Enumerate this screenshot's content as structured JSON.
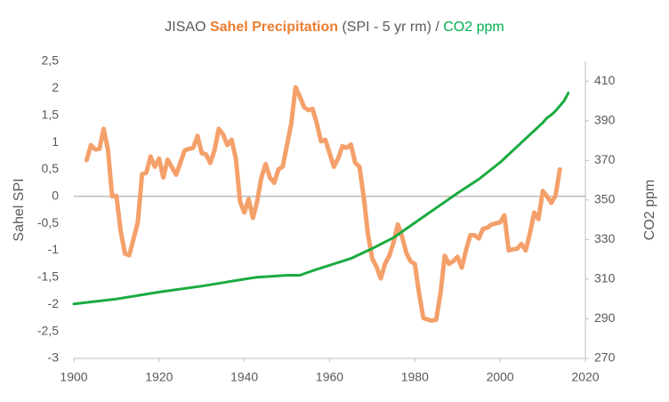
{
  "chart_data": {
    "type": "line",
    "title_parts": [
      {
        "text": "JISAO",
        "color": "#595959",
        "bold": false
      },
      {
        "text": "Sahel Precipitation",
        "color": "#ed7d31",
        "bold": true
      },
      {
        "text": "(SPI - 5 yr rm) /",
        "color": "#595959",
        "bold": false
      },
      {
        "text": "CO2 ppm",
        "color": "#00b050",
        "bold": false
      }
    ],
    "y_label": "Sahel SPI",
    "y2_label": "CO2 ppm",
    "xlim": [
      1900,
      2020
    ],
    "xticks": [
      1900,
      1920,
      1940,
      1960,
      1980,
      2000,
      2020
    ],
    "ylim": [
      -3,
      2.5
    ],
    "yticks": [
      {
        "value": 2.5,
        "label": "2,5"
      },
      2,
      {
        "value": 1.5,
        "label": "1,5"
      },
      1,
      {
        "value": 0.5,
        "label": "0,5"
      },
      0,
      {
        "value": -0.5,
        "label": "-0,5"
      },
      -1,
      {
        "value": -1.5,
        "label": "-1,5"
      },
      -2,
      {
        "value": -2.5,
        "label": "-2,5"
      },
      -3
    ],
    "y2lim": [
      270,
      420
    ],
    "y2ticks": [
      270,
      290,
      310,
      330,
      350,
      370,
      390,
      410
    ],
    "zero_line": true,
    "series": [
      {
        "color": "#f4a06a",
        "axis": "y",
        "x": [
          1903,
          1904,
          1905,
          1906,
          1907,
          1908,
          1909,
          1910,
          1911,
          1912,
          1913,
          1915,
          1916,
          1917,
          1918,
          1919,
          1920,
          1921,
          1922,
          1924,
          1926,
          1927,
          1928,
          1929,
          1930,
          1931,
          1932,
          1933,
          1934,
          1935,
          1936,
          1937,
          1938,
          1939,
          1940,
          1941,
          1942,
          1943,
          1944,
          1945,
          1946,
          1947,
          1948,
          1949,
          1950,
          1951,
          1952,
          1953,
          1954,
          1955,
          1956,
          1957,
          1958,
          1959,
          1960,
          1961,
          1962,
          1963,
          1964,
          1965,
          1966,
          1967,
          1968,
          1969,
          1970,
          1971,
          1972,
          1973,
          1974,
          1975,
          1976,
          1977,
          1978,
          1979,
          1980,
          1981,
          1982,
          1983,
          1984,
          1985,
          1986,
          1987,
          1988,
          1989,
          1990,
          1991,
          1992,
          1993,
          1994,
          1995,
          1996,
          1997,
          1998,
          1999,
          2000,
          2001,
          2002,
          2003,
          2004,
          2005,
          2006,
          2007,
          2008,
          2009,
          2010,
          2011,
          2012,
          2013,
          2014
        ],
        "values": [
          0.67,
          0.95,
          0.87,
          0.88,
          1.25,
          0.87,
          0.0,
          0.01,
          -0.65,
          -1.06,
          -1.09,
          -0.48,
          0.41,
          0.44,
          0.74,
          0.55,
          0.7,
          0.35,
          0.68,
          0.4,
          0.85,
          0.88,
          0.9,
          1.12,
          0.8,
          0.78,
          0.62,
          0.85,
          1.25,
          1.15,
          0.95,
          1.05,
          0.7,
          -0.1,
          -0.3,
          -0.05,
          -0.4,
          -0.1,
          0.35,
          0.6,
          0.35,
          0.25,
          0.5,
          0.55,
          0.95,
          1.35,
          2.02,
          1.85,
          1.65,
          1.6,
          1.62,
          1.35,
          1.02,
          1.05,
          0.8,
          0.55,
          0.7,
          0.93,
          0.9,
          0.96,
          0.62,
          0.55,
          0.0,
          -0.7,
          -1.15,
          -1.3,
          -1.52,
          -1.25,
          -1.1,
          -0.85,
          -0.52,
          -0.75,
          -1.05,
          -1.2,
          -1.25,
          -1.8,
          -2.25,
          -2.28,
          -2.3,
          -2.28,
          -1.8,
          -1.1,
          -1.25,
          -1.2,
          -1.12,
          -1.32,
          -1.0,
          -0.72,
          -0.72,
          -0.78,
          -0.6,
          -0.58,
          -0.52,
          -0.5,
          -0.48,
          -0.35,
          -1.0,
          -0.98,
          -0.97,
          -0.88,
          -1.0,
          -0.68,
          -0.3,
          -0.42,
          0.1,
          0.0,
          -0.12,
          0.02,
          0.5
        ]
      },
      {
        "color": "#1aab40",
        "axis": "y2",
        "x": [
          1900,
          1910,
          1920,
          1930,
          1940,
          1943,
          1950,
          1953,
          1955,
          1957,
          1960,
          1965,
          1970,
          1975,
          1980,
          1985,
          1990,
          1995,
          2000,
          2005,
          2010,
          2011,
          2012,
          2013,
          2015,
          2016
        ],
        "values": [
          297.5,
          300,
          303.5,
          306.5,
          310,
          311,
          312,
          312,
          313.5,
          315,
          317,
          320.5,
          325.5,
          331,
          338.5,
          346,
          353.5,
          360.5,
          369,
          379,
          389,
          391.5,
          393,
          395,
          400,
          404
        ]
      }
    ]
  }
}
